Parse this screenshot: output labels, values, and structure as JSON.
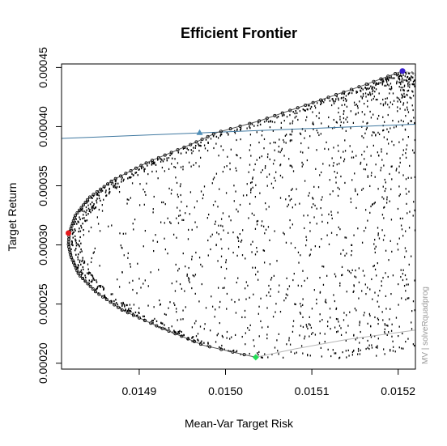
{
  "chart_data": {
    "type": "scatter",
    "title": "Efficient Frontier",
    "xlabel": "Mean-Var Target Risk",
    "ylabel": "Target Return",
    "side_note": "MV | solveRquadprog",
    "xlim": [
      0.01481,
      0.01522
    ],
    "ylim": [
      0.000195,
      0.000453
    ],
    "x_ticks": [
      {
        "value": 0.0149,
        "label": "0.0149"
      },
      {
        "value": 0.015,
        "label": "0.0150"
      },
      {
        "value": 0.0151,
        "label": "0.0151"
      },
      {
        "value": 0.0152,
        "label": "0.0152"
      }
    ],
    "y_ticks": [
      {
        "value": 0.0002,
        "label": "0.00020"
      },
      {
        "value": 0.00025,
        "label": "0.00025"
      },
      {
        "value": 0.0003,
        "label": "0.00030"
      },
      {
        "value": 0.00035,
        "label": "0.00035"
      },
      {
        "value": 0.0004,
        "label": "0.00040"
      },
      {
        "value": 0.00045,
        "label": "0.00045"
      }
    ],
    "grid": false,
    "frontier": {
      "color": "#000000",
      "points": [
        {
          "x": 0.015035,
          "y": 0.000205
        },
        {
          "x": 0.014975,
          "y": 0.000215
        },
        {
          "x": 0.014925,
          "y": 0.00023
        },
        {
          "x": 0.01488,
          "y": 0.000245
        },
        {
          "x": 0.01485,
          "y": 0.00026
        },
        {
          "x": 0.01483,
          "y": 0.000275
        },
        {
          "x": 0.014821,
          "y": 0.00029
        },
        {
          "x": 0.014818,
          "y": 0.0003
        },
        {
          "x": 0.014819,
          "y": 0.00031
        },
        {
          "x": 0.014826,
          "y": 0.000325
        },
        {
          "x": 0.014842,
          "y": 0.00034
        },
        {
          "x": 0.01487,
          "y": 0.000355
        },
        {
          "x": 0.01491,
          "y": 0.00037
        },
        {
          "x": 0.01496,
          "y": 0.000385
        },
        {
          "x": 0.01499,
          "y": 0.000395
        },
        {
          "x": 0.01504,
          "y": 0.000405
        },
        {
          "x": 0.0151,
          "y": 0.00042
        },
        {
          "x": 0.01516,
          "y": 0.000435
        },
        {
          "x": 0.015205,
          "y": 0.000447
        }
      ]
    },
    "minvar_curve": {
      "color": "#b5b5b5",
      "points": [
        {
          "x": 0.015035,
          "y": 0.000205
        },
        {
          "x": 0.01508,
          "y": 0.000212
        },
        {
          "x": 0.01514,
          "y": 0.00022
        },
        {
          "x": 0.01522,
          "y": 0.000228
        }
      ]
    },
    "upper_curve": {
      "color": "#b5b5b5",
      "points": [
        {
          "x": 0.015205,
          "y": 0.000447
        },
        {
          "x": 0.01522,
          "y": 0.000445
        }
      ]
    },
    "tangency_line": {
      "color": "#3f78a0",
      "points": [
        {
          "x": 0.01481,
          "y": 0.00039
        },
        {
          "x": 0.01522,
          "y": 0.000402
        }
      ]
    },
    "special_points": [
      {
        "name": "min-variance",
        "x": 0.014818,
        "y": 0.00031,
        "color": "#e41a1c"
      },
      {
        "name": "tangency",
        "x": 0.01497,
        "y": 0.000395,
        "color": "#4f8fb8"
      },
      {
        "name": "min-return",
        "x": 0.015035,
        "y": 0.000205,
        "color": "#22dd55"
      },
      {
        "name": "max-return",
        "x": 0.015205,
        "y": 0.000447,
        "color": "#3a1ecf"
      }
    ],
    "feasible_points": {
      "color": "#000000",
      "count": 1400,
      "note": "random portfolios filling region between frontier and right edge"
    }
  }
}
